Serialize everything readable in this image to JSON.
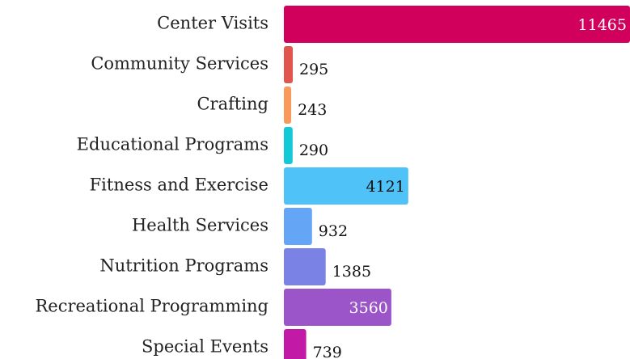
{
  "chart_data": {
    "type": "bar",
    "categories": [
      "Center Visits",
      "Community Services",
      "Crafting",
      "Educational Programs",
      "Fitness and Exercise",
      "Health Services",
      "Nutrition Programs",
      "Recreational Programming",
      "Special Events"
    ],
    "values": [
      11465,
      295,
      243,
      290,
      4121,
      932,
      1385,
      3560,
      739
    ],
    "colors": [
      "#d1005d",
      "#e0564f",
      "#f79a5a",
      "#14c8d8",
      "#4fc3f7",
      "#64a5f5",
      "#7b82e6",
      "#9c55c9",
      "#c21aa6"
    ]
  }
}
